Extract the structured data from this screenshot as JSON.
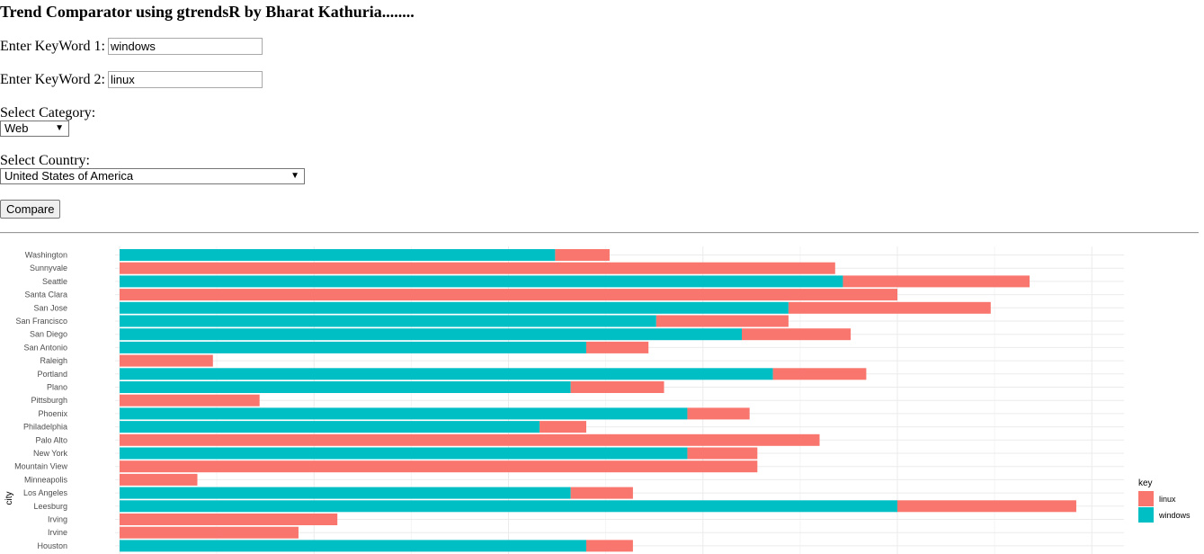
{
  "app": {
    "title": "Trend Comparator using gtrendsR by Bharat Kathuria........"
  },
  "form": {
    "keyword1_label": "Enter KeyWord 1:",
    "keyword1_value": "windows",
    "keyword2_label": "Enter KeyWord 2:",
    "keyword2_value": "linux",
    "category_label": "Select Category:",
    "category_value": "Web",
    "country_label": "Select Country:",
    "country_value": "United States of America",
    "compare_label": "Compare"
  },
  "chart_data": {
    "type": "bar",
    "orientation": "horizontal",
    "stacked": true,
    "ylabel": "city",
    "legend_title": "key",
    "legend_position": "right",
    "colors": {
      "linux": "#F8766D",
      "windows": "#00BFC4"
    },
    "categories": [
      "Washington",
      "Sunnyvale",
      "Seattle",
      "Santa Clara",
      "San Jose",
      "San Francisco",
      "San Diego",
      "San Antonio",
      "Raleigh",
      "Portland",
      "Plano",
      "Pittsburgh",
      "Phoenix",
      "Philadelphia",
      "Palo Alto",
      "New York",
      "Mountain View",
      "Minneapolis",
      "Los Angeles",
      "Leesburg",
      "Irving",
      "Irvine",
      "Houston"
    ],
    "series": [
      {
        "name": "windows",
        "values": [
          56,
          0,
          93,
          0,
          86,
          69,
          80,
          60,
          0,
          84,
          58,
          0,
          73,
          54,
          0,
          73,
          0,
          0,
          58,
          100,
          0,
          0,
          60
        ]
      },
      {
        "name": "linux",
        "values": [
          7,
          92,
          24,
          100,
          26,
          17,
          14,
          8,
          12,
          12,
          12,
          18,
          8,
          6,
          90,
          9,
          82,
          10,
          8,
          23,
          28,
          23,
          6
        ]
      }
    ],
    "grid": true
  }
}
